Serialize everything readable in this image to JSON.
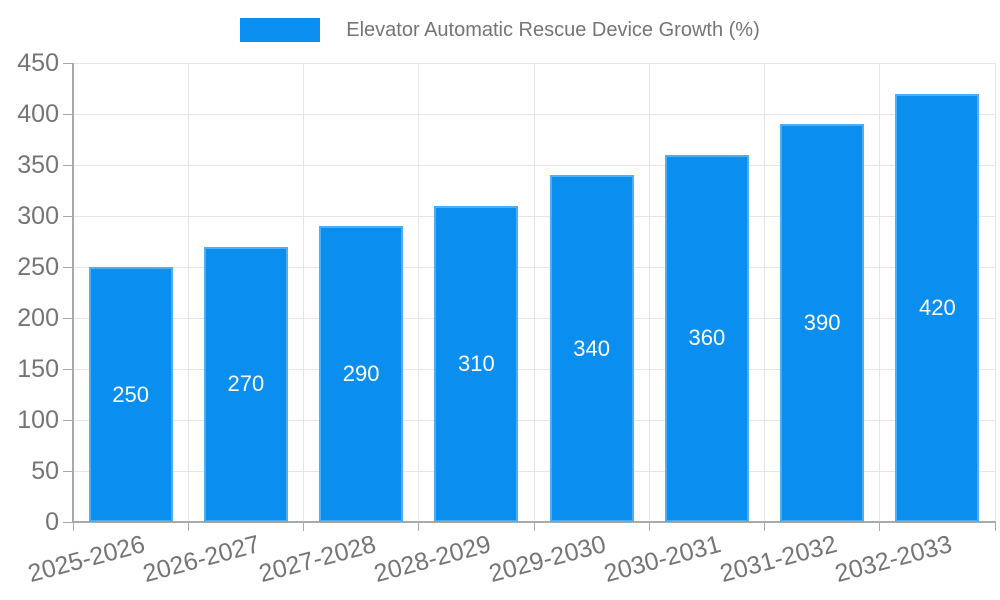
{
  "chart_data": {
    "type": "bar",
    "title": "Elevator Automatic Rescue Device Growth (%)",
    "categories": [
      "2025-2026",
      "2026-2027",
      "2027-2028",
      "2028-2029",
      "2029-2030",
      "2030-2031",
      "2031-2032",
      "2032-2033"
    ],
    "values": [
      250,
      270,
      290,
      310,
      340,
      360,
      390,
      420
    ],
    "xlabel": "",
    "ylabel": "",
    "ylim": [
      0,
      450
    ],
    "yticks": [
      0,
      50,
      100,
      150,
      200,
      250,
      300,
      350,
      400,
      450
    ],
    "grid": true,
    "legend_position": "top-center",
    "value_labels_position": "center-of-bar",
    "x_label_rotation_deg": -15,
    "colors": {
      "bar": "#0a8ff0",
      "value_label": "#ffffff",
      "axis_text": "#757575",
      "grid_line": "#e6e6e6",
      "axis_line": "#aaaaaa",
      "background": "#ffffff"
    }
  }
}
